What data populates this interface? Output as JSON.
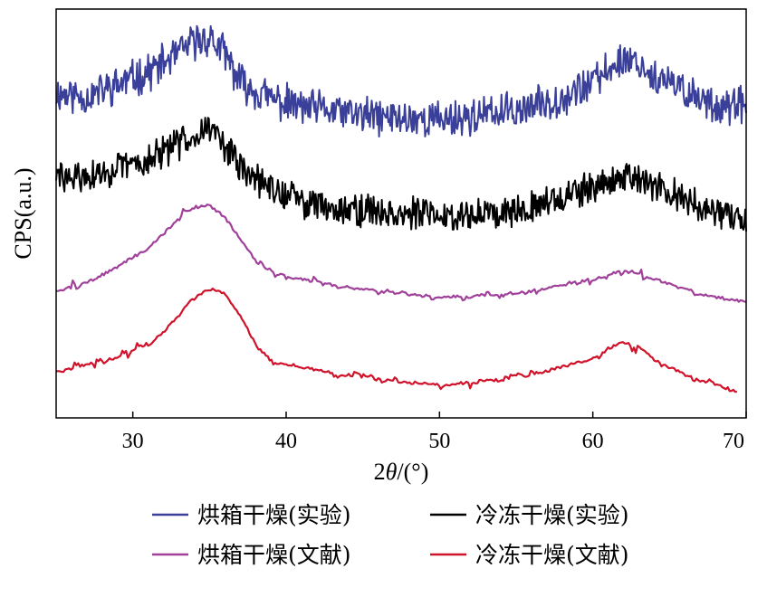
{
  "chart_data": {
    "type": "line",
    "xlabel": "2θ/(°)",
    "xlabel_prefix": "2",
    "xlabel_theta": "θ",
    "xlabel_suffix": "/(°)",
    "ylabel": "CPS(a.u.)",
    "xlim": [
      25,
      70
    ],
    "ylim": [
      0,
      100
    ],
    "y_ticks_shown": false,
    "grid": false,
    "legend_position": "bottom",
    "x_ticks": [
      30,
      40,
      50,
      60,
      70
    ],
    "x_tick_labels": [
      "30",
      "40",
      "50",
      "60",
      "70"
    ],
    "series": [
      {
        "name": "烘箱干燥(实验)",
        "color": "#3a3f99",
        "style": "noisy",
        "noise": 4.0,
        "seed": 11,
        "points": [
          [
            25,
            79.5
          ],
          [
            27,
            78.5
          ],
          [
            29,
            81.5
          ],
          [
            31,
            84.5
          ],
          [
            33,
            89
          ],
          [
            34,
            92
          ],
          [
            35,
            93
          ],
          [
            36,
            89
          ],
          [
            37,
            82
          ],
          [
            39,
            78
          ],
          [
            41,
            76
          ],
          [
            43,
            75
          ],
          [
            46,
            73.5
          ],
          [
            50,
            73
          ],
          [
            53,
            74
          ],
          [
            56,
            76
          ],
          [
            58,
            78.5
          ],
          [
            60,
            82
          ],
          [
            61,
            85
          ],
          [
            62,
            88
          ],
          [
            63,
            87
          ],
          [
            64,
            83
          ],
          [
            66,
            80
          ],
          [
            68,
            76.5
          ],
          [
            70,
            76
          ]
        ]
      },
      {
        "name": "冷冻干燥(实验)",
        "color": "#000000",
        "style": "noisy",
        "noise": 3.5,
        "seed": 29,
        "points": [
          [
            25,
            59
          ],
          [
            27,
            58.5
          ],
          [
            29,
            61
          ],
          [
            31,
            63
          ],
          [
            33,
            67
          ],
          [
            34,
            70
          ],
          [
            35,
            71
          ],
          [
            36,
            67
          ],
          [
            37,
            61
          ],
          [
            39,
            56
          ],
          [
            41,
            53
          ],
          [
            43,
            51.5
          ],
          [
            46,
            50.5
          ],
          [
            50,
            49.5
          ],
          [
            53,
            50
          ],
          [
            56,
            52
          ],
          [
            58,
            54
          ],
          [
            60,
            56
          ],
          [
            61,
            58
          ],
          [
            62,
            59
          ],
          [
            63,
            58
          ],
          [
            64,
            56.5
          ],
          [
            66,
            53.5
          ],
          [
            68,
            50
          ],
          [
            70,
            47.5
          ]
        ]
      },
      {
        "name": "烘箱干燥(文献)",
        "color": "#a0409a",
        "style": "smooth",
        "noise": 0.7,
        "seed": 47,
        "points": [
          [
            25,
            31
          ],
          [
            27,
            33
          ],
          [
            29,
            37
          ],
          [
            31,
            41.5
          ],
          [
            32,
            45
          ],
          [
            33,
            49
          ],
          [
            34,
            51.5
          ],
          [
            35,
            52
          ],
          [
            36,
            49
          ],
          [
            37,
            44
          ],
          [
            38,
            38.5
          ],
          [
            39,
            35.5
          ],
          [
            41,
            34
          ],
          [
            43,
            32.5
          ],
          [
            46,
            31
          ],
          [
            50,
            29.5
          ],
          [
            53,
            30
          ],
          [
            56,
            31
          ],
          [
            58,
            32.5
          ],
          [
            60,
            34
          ],
          [
            62,
            36
          ],
          [
            63,
            35.5
          ],
          [
            64,
            34
          ],
          [
            66,
            31.5
          ],
          [
            68,
            29.5
          ],
          [
            70,
            28.5
          ]
        ]
      },
      {
        "name": "冷冻干燥(文献)",
        "color": "#d0122a",
        "style": "smooth",
        "noise": 0.7,
        "seed": 63,
        "points": [
          [
            25,
            11
          ],
          [
            27,
            13
          ],
          [
            29,
            15
          ],
          [
            31,
            18
          ],
          [
            32,
            21
          ],
          [
            33,
            25
          ],
          [
            34,
            29.5
          ],
          [
            35,
            31.5
          ],
          [
            36,
            30.5
          ],
          [
            37,
            25
          ],
          [
            38,
            18
          ],
          [
            39,
            14
          ],
          [
            41,
            12.5
          ],
          [
            43,
            11
          ],
          [
            46,
            9.5
          ],
          [
            50,
            8
          ],
          [
            53,
            9
          ],
          [
            56,
            10.5
          ],
          [
            58,
            12.5
          ],
          [
            60,
            14.5
          ],
          [
            61,
            17
          ],
          [
            62,
            18.5
          ],
          [
            63,
            17
          ],
          [
            64,
            14.5
          ],
          [
            66,
            10.5
          ],
          [
            68,
            8
          ],
          [
            69.5,
            6.5
          ]
        ]
      }
    ]
  }
}
